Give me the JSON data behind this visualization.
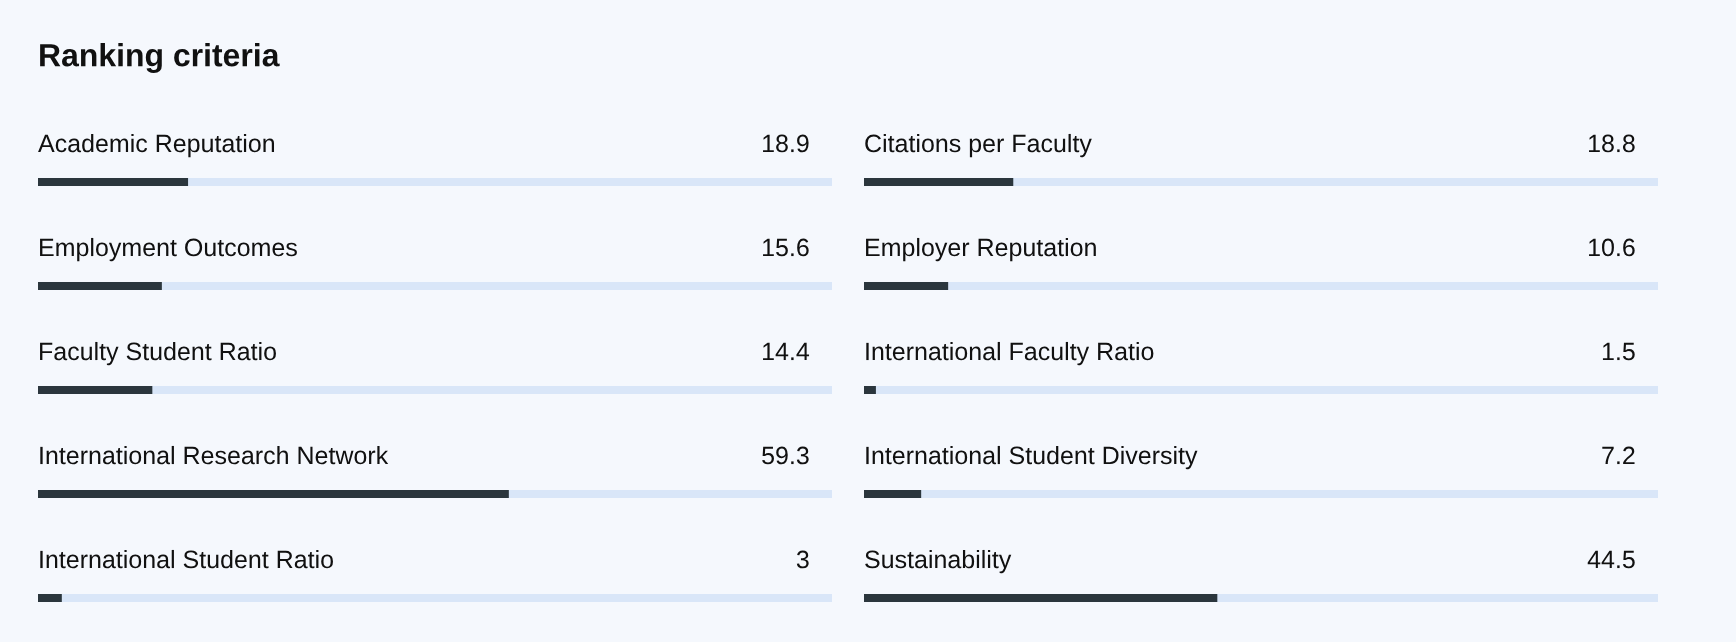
{
  "chart_data": [
    {
      "type": "bar",
      "title": "Ranking criteria",
      "orientation": "horizontal",
      "categories": [
        "Academic Reputation",
        "Employment Outcomes",
        "Faculty Student Ratio",
        "International Research Network",
        "International Student Ratio"
      ],
      "values": [
        18.9,
        15.6,
        14.4,
        59.3,
        3
      ],
      "color": "#2b363d",
      "xlim": [
        0,
        100
      ],
      "data_labels": true,
      "tick_labels": false
    },
    {
      "type": "bar",
      "orientation": "horizontal",
      "categories": [
        "Citations per Faculty",
        "Employer Reputation",
        "International Faculty Ratio",
        "International Student Diversity",
        "Sustainability"
      ],
      "values": [
        18.8,
        10.6,
        1.5,
        7.2,
        44.5
      ],
      "color": "#2b363d",
      "xlim": [
        0,
        100
      ],
      "data_labels": true,
      "tick_labels": false
    }
  ]
}
